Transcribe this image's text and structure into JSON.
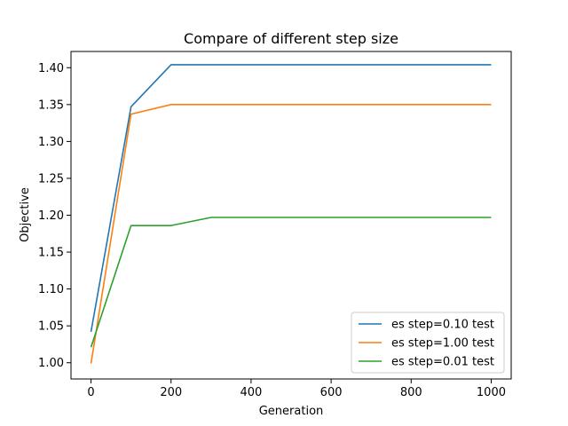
{
  "chart_data": {
    "type": "line",
    "title": "Compare of different step size",
    "xlabel": "Generation",
    "ylabel": "Objective",
    "xlim": [
      -50,
      1050
    ],
    "ylim": [
      0.978,
      1.422
    ],
    "xticks": [
      0,
      200,
      400,
      600,
      800,
      1000
    ],
    "yticks": [
      1.0,
      1.05,
      1.1,
      1.15,
      1.2,
      1.25,
      1.3,
      1.35,
      1.4
    ],
    "grid": false,
    "legend_position": "lower-right",
    "series": [
      {
        "name": "es step=0.10 test",
        "color": "#1f77b4",
        "x": [
          0,
          100,
          200,
          300,
          400,
          500,
          600,
          700,
          800,
          900,
          1000
        ],
        "y": [
          1.042,
          1.347,
          1.404,
          1.404,
          1.404,
          1.404,
          1.404,
          1.404,
          1.404,
          1.404,
          1.404
        ]
      },
      {
        "name": "es step=1.00 test",
        "color": "#ff7f0e",
        "x": [
          0,
          100,
          200,
          300,
          400,
          500,
          600,
          700,
          800,
          900,
          1000
        ],
        "y": [
          0.999,
          1.337,
          1.35,
          1.35,
          1.35,
          1.35,
          1.35,
          1.35,
          1.35,
          1.35,
          1.35
        ]
      },
      {
        "name": "es step=0.01 test",
        "color": "#2ca02c",
        "x": [
          0,
          100,
          200,
          300,
          400,
          500,
          600,
          700,
          800,
          900,
          1000
        ],
        "y": [
          1.021,
          1.186,
          1.186,
          1.197,
          1.197,
          1.197,
          1.197,
          1.197,
          1.197,
          1.197,
          1.197
        ]
      }
    ]
  }
}
